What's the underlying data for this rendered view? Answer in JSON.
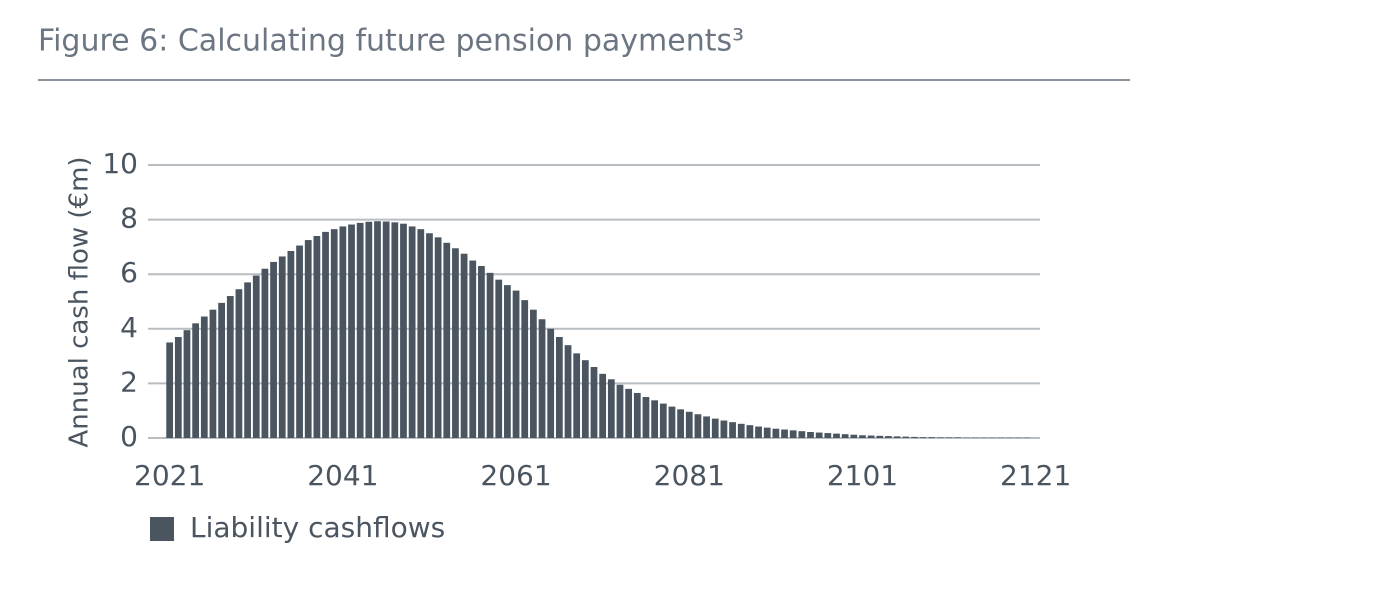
{
  "chart_data": {
    "type": "bar",
    "title": "Figure 6: Calculating future pension payments³",
    "y_label": "Annual cash flow (€m)",
    "x": [
      2021,
      2022,
      2023,
      2024,
      2025,
      2026,
      2027,
      2028,
      2029,
      2030,
      2031,
      2032,
      2033,
      2034,
      2035,
      2036,
      2037,
      2038,
      2039,
      2040,
      2041,
      2042,
      2043,
      2044,
      2045,
      2046,
      2047,
      2048,
      2049,
      2050,
      2051,
      2052,
      2053,
      2054,
      2055,
      2056,
      2057,
      2058,
      2059,
      2060,
      2061,
      2062,
      2063,
      2064,
      2065,
      2066,
      2067,
      2068,
      2069,
      2070,
      2071,
      2072,
      2073,
      2074,
      2075,
      2076,
      2077,
      2078,
      2079,
      2080,
      2081,
      2082,
      2083,
      2084,
      2085,
      2086,
      2087,
      2088,
      2089,
      2090,
      2091,
      2092,
      2093,
      2094,
      2095,
      2096,
      2097,
      2098,
      2099,
      2100,
      2101,
      2102,
      2103,
      2104,
      2105,
      2106,
      2107,
      2108,
      2109,
      2110,
      2111,
      2112,
      2113,
      2114,
      2115,
      2116,
      2117,
      2118,
      2119,
      2120
    ],
    "series": [
      {
        "name": "Liability cashflows",
        "color": "#4a5560",
        "values": [
          3.5,
          3.7,
          3.95,
          4.2,
          4.45,
          4.7,
          4.95,
          5.2,
          5.45,
          5.7,
          5.95,
          6.2,
          6.45,
          6.65,
          6.85,
          7.05,
          7.25,
          7.4,
          7.55,
          7.65,
          7.75,
          7.82,
          7.88,
          7.92,
          7.94,
          7.93,
          7.9,
          7.85,
          7.75,
          7.65,
          7.5,
          7.35,
          7.15,
          6.95,
          6.75,
          6.5,
          6.3,
          6.05,
          5.8,
          5.6,
          5.4,
          5.05,
          4.7,
          4.35,
          4.0,
          3.7,
          3.4,
          3.1,
          2.85,
          2.6,
          2.35,
          2.15,
          1.95,
          1.8,
          1.65,
          1.5,
          1.38,
          1.26,
          1.15,
          1.05,
          0.96,
          0.87,
          0.79,
          0.71,
          0.64,
          0.58,
          0.52,
          0.47,
          0.42,
          0.38,
          0.34,
          0.31,
          0.28,
          0.25,
          0.22,
          0.2,
          0.18,
          0.16,
          0.14,
          0.12,
          0.1,
          0.09,
          0.08,
          0.07,
          0.06,
          0.05,
          0.04,
          0.03,
          0.03,
          0.02,
          0.02,
          0.02,
          0.01,
          0.01,
          0.01,
          0.01,
          0.01,
          0.01,
          0.01,
          0.01
        ]
      }
    ],
    "xlim": [
      2018.5,
      2121.5
    ],
    "xticks": [
      2021,
      2041,
      2061,
      2081,
      2101,
      2121
    ],
    "ylim": [
      0,
      10
    ],
    "yticks": [
      0,
      2,
      4,
      6,
      8,
      10
    ],
    "grid": true
  }
}
